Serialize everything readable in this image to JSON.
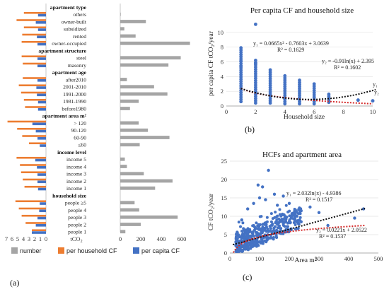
{
  "chart_data": [
    {
      "type": "bar",
      "panel_label": "(a)",
      "axis_unit": "tCO",
      "x_ticks_left": [
        7,
        6,
        5,
        4,
        3,
        2,
        1,
        0
      ],
      "x_ticks_right": [
        0,
        200,
        400,
        600
      ],
      "groups": [
        {
          "title": "apartment type",
          "rows": [
            {
              "label": "others",
              "number": 5,
              "household_cf": 3.9,
              "per_capita_cf": 1.4
            },
            {
              "label": "owner-built",
              "number": 250,
              "household_cf": 5.2,
              "per_capita_cf": 1.8
            },
            {
              "label": "subsidized",
              "number": 40,
              "household_cf": 3.9,
              "per_capita_cf": 1.4
            },
            {
              "label": "rented",
              "number": 150,
              "household_cf": 4.2,
              "per_capita_cf": 1.6
            },
            {
              "label": "owner-occupied",
              "number": 680,
              "household_cf": 4.3,
              "per_capita_cf": 1.5
            }
          ]
        },
        {
          "title": "apartment structure",
          "rows": [
            {
              "label": "steel",
              "number": 590,
              "household_cf": 4.3,
              "per_capita_cf": 1.5
            },
            {
              "label": "masonry",
              "number": 470,
              "household_cf": 4.1,
              "per_capita_cf": 1.5
            }
          ]
        },
        {
          "title": "apartment age",
          "rows": [
            {
              "label": "after2010",
              "number": 65,
              "household_cf": 4.1,
              "per_capita_cf": 1.5
            },
            {
              "label": "2001-2010",
              "number": 330,
              "household_cf": 4.8,
              "per_capita_cf": 1.7
            },
            {
              "label": "1991-2000",
              "number": 460,
              "household_cf": 4.4,
              "per_capita_cf": 1.6
            },
            {
              "label": "1981-1990",
              "number": 180,
              "household_cf": 3.9,
              "per_capita_cf": 1.4
            },
            {
              "label": "before1980",
              "number": 95,
              "household_cf": 3.7,
              "per_capita_cf": 1.4
            }
          ]
        },
        {
          "title": "apartment area m²",
          "rows": [
            {
              "label": "> 120",
              "number": 180,
              "household_cf": 6.8,
              "per_capita_cf": 2.4
            },
            {
              "label": "90-120",
              "number": 270,
              "household_cf": 5.1,
              "per_capita_cf": 1.8
            },
            {
              "label": "60-90",
              "number": 480,
              "household_cf": 4.2,
              "per_capita_cf": 1.5
            },
            {
              "label": "≤60",
              "number": 190,
              "household_cf": 3.0,
              "per_capita_cf": 1.1
            }
          ]
        },
        {
          "title": "income level",
          "rows": [
            {
              "label": "income 5",
              "number": 45,
              "household_cf": 5.2,
              "per_capita_cf": 1.9
            },
            {
              "label": "income 4",
              "number": 65,
              "household_cf": 4.6,
              "per_capita_cf": 1.6
            },
            {
              "label": "income 3",
              "number": 230,
              "household_cf": 4.4,
              "per_capita_cf": 1.5
            },
            {
              "label": "income 2",
              "number": 510,
              "household_cf": 4.1,
              "per_capita_cf": 1.5
            },
            {
              "label": "income 1",
              "number": 340,
              "household_cf": 3.8,
              "per_capita_cf": 1.4
            }
          ]
        },
        {
          "title": "household size",
          "rows": [
            {
              "label": "people ≥5",
              "number": 140,
              "household_cf": 5.4,
              "per_capita_cf": 1.1
            },
            {
              "label": "people 4",
              "number": 185,
              "household_cf": 4.8,
              "per_capita_cf": 1.2
            },
            {
              "label": "people 3",
              "number": 560,
              "household_cf": 4.3,
              "per_capita_cf": 1.5
            },
            {
              "label": "people 2",
              "number": 200,
              "household_cf": 3.6,
              "per_capita_cf": 1.8
            },
            {
              "label": "people 1",
              "number": 50,
              "household_cf": 2.5,
              "per_capita_cf": 2.5
            }
          ]
        }
      ],
      "legend": {
        "items": [
          {
            "name": "number",
            "color": "#a5a5a5"
          },
          {
            "name": "per household CF",
            "color": "#ed7d31"
          },
          {
            "name": "per capita CF",
            "color": "#4472c4"
          }
        ],
        "placement": "bottom"
      }
    },
    {
      "type": "scatter",
      "panel_label": "(b)",
      "title": "Per capita CF and household size",
      "xlabel": "Household size",
      "ylabel": "per capita CF tCO₂/year",
      "xlim": [
        0,
        10
      ],
      "ylim": [
        0,
        12
      ],
      "x_ticks": [
        0,
        2,
        4,
        6,
        8,
        10
      ],
      "y_ticks": [
        0,
        2,
        4,
        6,
        8,
        10
      ],
      "point_color": "#4472c4",
      "columns": [
        {
          "x": 1,
          "min": 0.6,
          "max": 7.9,
          "extra": [
            6.1,
            5.4
          ]
        },
        {
          "x": 2,
          "min": 0.4,
          "max": 6.2,
          "extra": [
            11.1,
            5.8
          ]
        },
        {
          "x": 3,
          "min": 0.4,
          "max": 4.9
        },
        {
          "x": 4,
          "min": 0.3,
          "max": 4.1
        },
        {
          "x": 5,
          "min": 0.3,
          "max": 3.5
        },
        {
          "x": 6,
          "min": 0.3,
          "max": 3.0
        },
        {
          "x": 7,
          "min": 0.5,
          "max": 1.6
        },
        {
          "x": 9,
          "min": 0.8,
          "max": 0.8
        },
        {
          "x": 10,
          "min": 0.7,
          "max": 0.7
        }
      ],
      "fits": [
        {
          "label": "y₁",
          "equation": "y₁ = 0.0665x² - 0.7603x + 3.0639",
          "r2": "R² = 0.1629",
          "kind": "poly2",
          "coef": [
            0.0665,
            -0.7603,
            3.0639
          ],
          "color": "#111111"
        },
        {
          "label": "y₂",
          "equation": "y₂ = -0.91ln(x) + 2.395",
          "r2": "R² = 0.1602",
          "kind": "log",
          "coef": [
            -0.91,
            2.395
          ],
          "color": "#d42a2a"
        }
      ]
    },
    {
      "type": "scatter",
      "panel_label": "(c)",
      "title": "HCFs and apartment area",
      "xlabel": "Area m²",
      "ylabel": "CF  tCO₂/year",
      "xlim": [
        0,
        500
      ],
      "ylim": [
        0,
        25
      ],
      "x_ticks": [
        0,
        100,
        200,
        300,
        400,
        500
      ],
      "y_ticks": [
        0,
        5,
        10,
        15,
        20,
        25
      ],
      "point_color": "#4472c4",
      "outliers": [
        [
          130,
          22.5
        ],
        [
          95,
          18.5
        ],
        [
          110,
          18.0
        ],
        [
          150,
          16.0
        ],
        [
          180,
          15.5
        ],
        [
          100,
          15.0
        ],
        [
          120,
          14.5
        ],
        [
          200,
          13.5
        ],
        [
          160,
          13.0
        ],
        [
          240,
          11.5
        ],
        [
          270,
          12.5
        ],
        [
          300,
          11.0
        ],
        [
          330,
          7.5
        ],
        [
          450,
          12.0
        ],
        [
          420,
          9.5
        ],
        [
          240,
          8.5
        ],
        [
          60,
          12.0
        ],
        [
          40,
          9.0
        ],
        [
          80,
          13.5
        ]
      ],
      "fits": [
        {
          "label": "y₁",
          "equation": "y₁ = 2.032ln(x) - 4.9386",
          "r2": "R² = 0.1517",
          "kind": "log",
          "coef": [
            2.032,
            -4.9386
          ],
          "color": "#d42a2a"
        },
        {
          "label": "y₂",
          "equation": "y₂ = 0.0221x + 2.0522",
          "r2": "R² = 0.1537",
          "kind": "linear",
          "coef": [
            0.0221,
            2.0522
          ],
          "color": "#111111"
        }
      ]
    }
  ]
}
